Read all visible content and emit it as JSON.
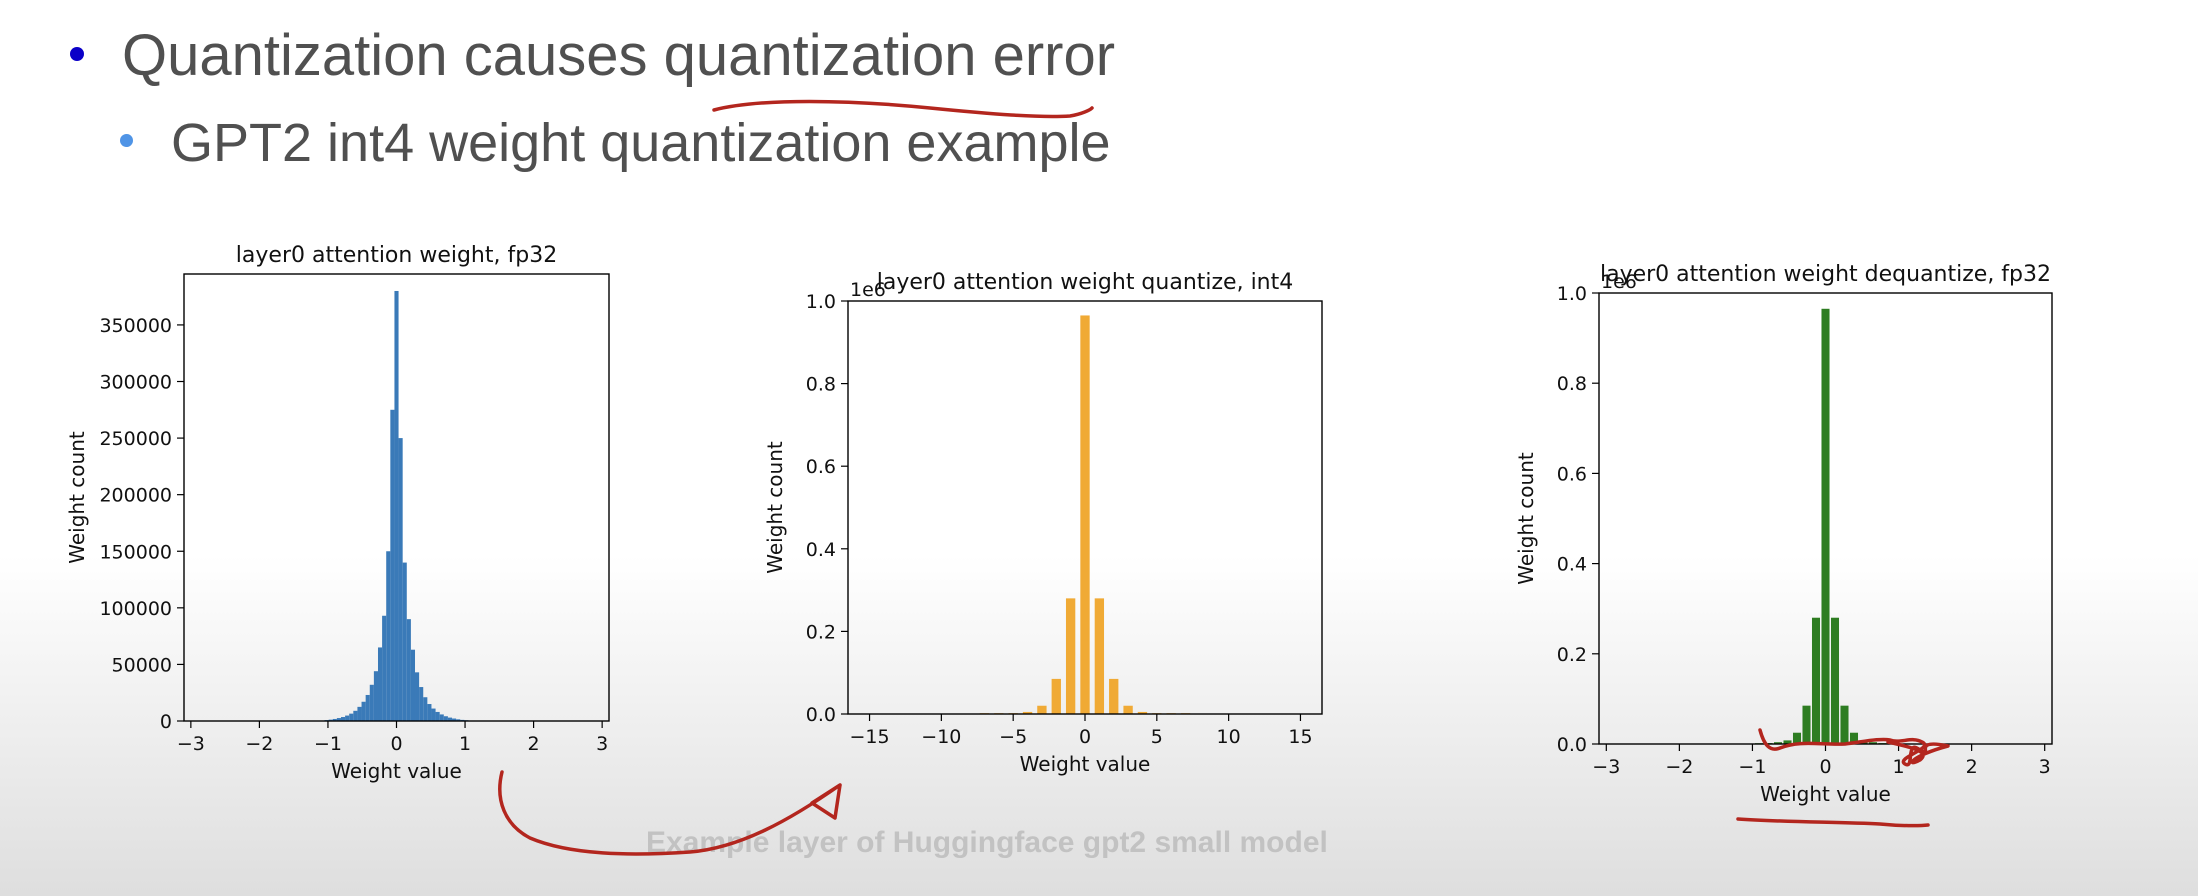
{
  "slide": {
    "bullet1": "Quantization causes quantization error",
    "bullet2": "GPT2 int4 weight quantization example",
    "caption": "Example layer of Huggingface gpt2 small model",
    "colors": {
      "bullet1_dot": "#0b00c8",
      "bullet2_dot": "#4f94e6",
      "text": "#505050",
      "annotation_ink": "#b3261e"
    }
  },
  "chart_data": [
    {
      "type": "bar",
      "title": "layer0 attention weight, fp32",
      "xlabel": "Weight value",
      "ylabel": "Weight count",
      "color": "#3a7ab8",
      "xlim": [
        -3.1,
        3.1
      ],
      "ylim": [
        0,
        395000
      ],
      "xticks": [
        -3,
        -2,
        -1,
        0,
        1,
        2,
        3
      ],
      "xtick_labels": [
        "−3",
        "−2",
        "−1",
        "0",
        "1",
        "2",
        "3"
      ],
      "yticks": [
        0,
        50000,
        100000,
        150000,
        200000,
        250000,
        300000,
        350000
      ],
      "ytick_labels": [
        "0",
        "50000",
        "100000",
        "150000",
        "200000",
        "250000",
        "300000",
        "350000"
      ],
      "bar_width": 0.06,
      "x": [
        -1.02,
        -0.96,
        -0.9,
        -0.84,
        -0.78,
        -0.72,
        -0.66,
        -0.6,
        -0.54,
        -0.48,
        -0.42,
        -0.36,
        -0.3,
        -0.24,
        -0.18,
        -0.12,
        -0.06,
        0.0,
        0.06,
        0.12,
        0.18,
        0.24,
        0.3,
        0.36,
        0.42,
        0.48,
        0.54,
        0.6,
        0.66,
        0.72,
        0.78,
        0.84,
        0.9,
        0.96,
        1.02
      ],
      "values": [
        800,
        1200,
        1800,
        2600,
        3500,
        4800,
        6500,
        9000,
        12500,
        17000,
        23000,
        32000,
        44000,
        65000,
        93000,
        150000,
        275000,
        380000,
        250000,
        140000,
        90000,
        63000,
        43000,
        30000,
        21000,
        15000,
        11000,
        8000,
        5800,
        4200,
        3000,
        2200,
        1500,
        1000,
        700
      ]
    },
    {
      "type": "bar",
      "title": "layer0 attention weight quantize, int4",
      "xlabel": "Weight value",
      "ylabel": "Weight count",
      "offset_label": "1e6",
      "color": "#f0aa35",
      "xlim": [
        -16.5,
        16.5
      ],
      "ylim": [
        0,
        1.0
      ],
      "xticks": [
        -15,
        -10,
        -5,
        0,
        5,
        10,
        15
      ],
      "xtick_labels": [
        "−15",
        "−10",
        "−5",
        "0",
        "5",
        "10",
        "15"
      ],
      "yticks": [
        0.0,
        0.2,
        0.4,
        0.6,
        0.8,
        1.0
      ],
      "ytick_labels": [
        "0.0",
        "0.2",
        "0.4",
        "0.6",
        "0.8",
        "1.0"
      ],
      "bar_width": 0.65,
      "x": [
        -7,
        -6,
        -5,
        -4,
        -3,
        -2,
        -1,
        0,
        1,
        2,
        3,
        4,
        5,
        6,
        7
      ],
      "values": [
        0.0005,
        0.001,
        0.002,
        0.005,
        0.02,
        0.085,
        0.28,
        0.965,
        0.28,
        0.085,
        0.02,
        0.005,
        0.002,
        0.001,
        0.0005
      ]
    },
    {
      "type": "bar",
      "title": "layer0 attention weight dequantize, fp32",
      "xlabel": "Weight value",
      "ylabel": "Weight count",
      "offset_label": "1e6",
      "color": "#2e7d22",
      "xlim": [
        -3.1,
        3.1
      ],
      "ylim": [
        0,
        1.0
      ],
      "xticks": [
        -3,
        -2,
        -1,
        0,
        1,
        2,
        3
      ],
      "xtick_labels": [
        "−3",
        "−2",
        "−1",
        "0",
        "1",
        "2",
        "3"
      ],
      "yticks": [
        0.0,
        0.2,
        0.4,
        0.6,
        0.8,
        1.0
      ],
      "ytick_labels": [
        "0.0",
        "0.2",
        "0.4",
        "0.6",
        "0.8",
        "1.0"
      ],
      "bar_width": 0.11,
      "x": [
        -0.91,
        -0.78,
        -0.65,
        -0.52,
        -0.39,
        -0.26,
        -0.13,
        0.0,
        0.13,
        0.26,
        0.39,
        0.52,
        0.65,
        0.78,
        0.91
      ],
      "values": [
        0.001,
        0.002,
        0.004,
        0.008,
        0.025,
        0.085,
        0.28,
        0.965,
        0.28,
        0.085,
        0.025,
        0.008,
        0.004,
        0.002,
        0.001
      ]
    }
  ]
}
